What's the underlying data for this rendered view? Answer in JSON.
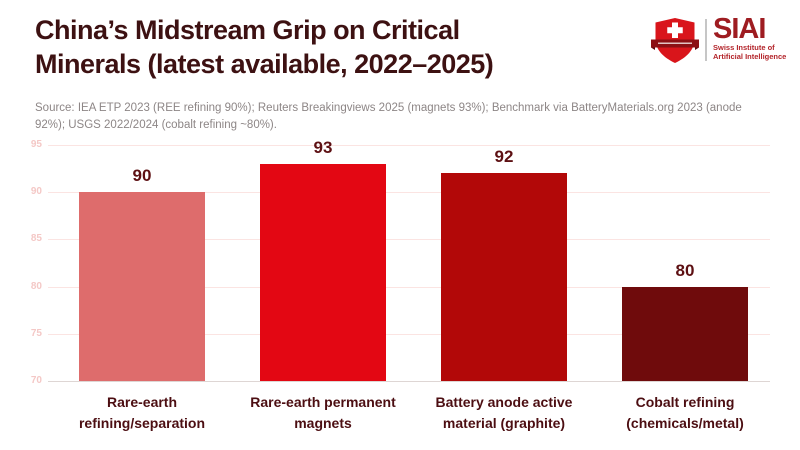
{
  "header": {
    "title": "China’s Midstream Grip on Critical\nMinerals (latest available, 2022–2025)",
    "logo": {
      "acronym": "SIAI",
      "subtitle_line1": "Swiss Institute of",
      "subtitle_line2": "Artificial Intelligence",
      "shield_icon": "swiss-shield-cross-banner"
    }
  },
  "source_note": "Source: IEA ETP 2023 (REE refining 90%); Reuters Breakingviews 2025 (magnets 93%); Benchmark via BatteryMaterials.org 2023 (anode 92%); USGS 2022/2024 (cobalt refining ~80%).",
  "chart_data": {
    "type": "bar",
    "title": "China’s Midstream Grip on Critical Minerals (latest available, 2022–2025)",
    "categories": [
      "Rare-earth\nrefining/separation",
      "Rare-earth permanent\nmagnets",
      "Battery anode active\nmaterial (graphite)",
      "Cobalt refining\n(chemicals/metal)"
    ],
    "values": [
      90,
      93,
      92,
      80
    ],
    "value_labels": [
      "90",
      "93",
      "92",
      "80"
    ],
    "bar_colors": [
      "#DE6C6C",
      "#E30713",
      "#B20808",
      "#6F0B0C"
    ],
    "xlabel": "",
    "ylabel": "",
    "ylim": [
      70,
      95
    ],
    "yticks": [
      70,
      75,
      80,
      85,
      90,
      95
    ],
    "grid": true,
    "legend": "none",
    "unit": "percent share"
  },
  "colors": {
    "background": "#FFFFFF",
    "title_text": "#3D1112",
    "source_text": "#8D8686",
    "value_label": "#5D1013",
    "category_label": "#4C0E12",
    "axis_tick": "#F4C8C6",
    "gridline": "#FBE4E2",
    "baseline": "#DED6D4",
    "logo_red": "#D9151B",
    "logo_banner": "#8C1014",
    "logo_text": "#9E1C21",
    "logo_subtext": "#B3242A"
  }
}
